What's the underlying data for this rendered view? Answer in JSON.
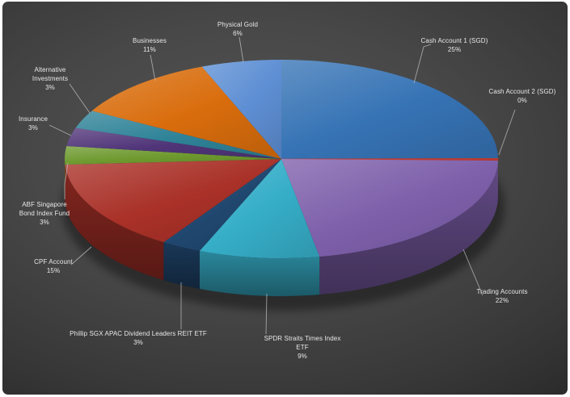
{
  "canvas": {
    "frame_color": "#ffffff",
    "background_center": "#525252",
    "background_edge": "#272727",
    "label_color": "#e8e8e8",
    "leader_line_color": "#bdbdbd"
  },
  "chart_data": {
    "type": "pie",
    "style": "3d",
    "title": "",
    "legend": "none",
    "labels_mode": "outside-with-leader-lines",
    "direction": "clockwise",
    "start_angle_deg": 0,
    "slices": [
      {
        "name": "Cash Account 1 (SGD)",
        "value": 25,
        "pct_label": "25%",
        "color": "#3673b5"
      },
      {
        "name": "Cash Account 2 (SGD)",
        "value": 0,
        "pct_label": "0%",
        "color": "#c13a30"
      },
      {
        "name": "Trading Accounts",
        "value": 22,
        "pct_label": "22%",
        "color": "#7d5faa"
      },
      {
        "name": "SPDR Straits Times Index ETF",
        "value": 9,
        "pct_label": "9%",
        "color": "#36aec8"
      },
      {
        "name": "Phillip SGX APAC Dividend Leaders REIT ETF",
        "value": 3,
        "pct_label": "3%",
        "color": "#20476f"
      },
      {
        "name": "CPF Account",
        "value": 15,
        "pct_label": "15%",
        "color": "#a93128"
      },
      {
        "name": "ABF Singapore Bond Index Fund",
        "value": 3,
        "pct_label": "3%",
        "color": "#6e9a2f"
      },
      {
        "name": "Insurance",
        "value": 3,
        "pct_label": "3%",
        "color": "#503579"
      },
      {
        "name": "Alternative Investments",
        "value": 3,
        "pct_label": "3%",
        "color": "#2f8398"
      },
      {
        "name": "Businesses",
        "value": 11,
        "pct_label": "11%",
        "color": "#d96d0d"
      },
      {
        "name": "Physical Gold",
        "value": 6,
        "pct_label": "6%",
        "color": "#5e8fd4"
      }
    ]
  }
}
